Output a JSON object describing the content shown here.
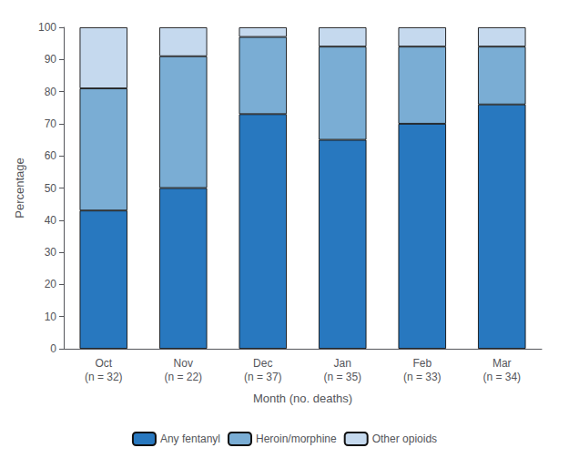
{
  "chart_data": {
    "type": "bar",
    "stacked": true,
    "categories": [
      "Oct\n(n = 32)",
      "Nov\n(n = 22)",
      "Dec\n(n = 37)",
      "Jan\n(n = 35)",
      "Feb\n(n = 33)",
      "Mar\n(n = 34)"
    ],
    "series": [
      {
        "name": "Any fentanyl",
        "color": "#2878bf",
        "values": [
          43,
          50,
          73,
          65,
          70,
          76
        ]
      },
      {
        "name": "Heroin/morphine",
        "color": "#7aadd4",
        "values": [
          38,
          41,
          24,
          29,
          24,
          18
        ]
      },
      {
        "name": "Other opioids",
        "color": "#c5d9ee",
        "values": [
          19,
          9,
          3,
          6,
          6,
          6
        ]
      }
    ],
    "xlabel": "Month (no. deaths)",
    "ylabel": "Percentage",
    "ylim": [
      0,
      100
    ],
    "yticks": [
      0,
      10,
      20,
      30,
      40,
      50,
      60,
      70,
      80,
      90,
      100
    ],
    "grid": false,
    "legend": "bottom"
  }
}
